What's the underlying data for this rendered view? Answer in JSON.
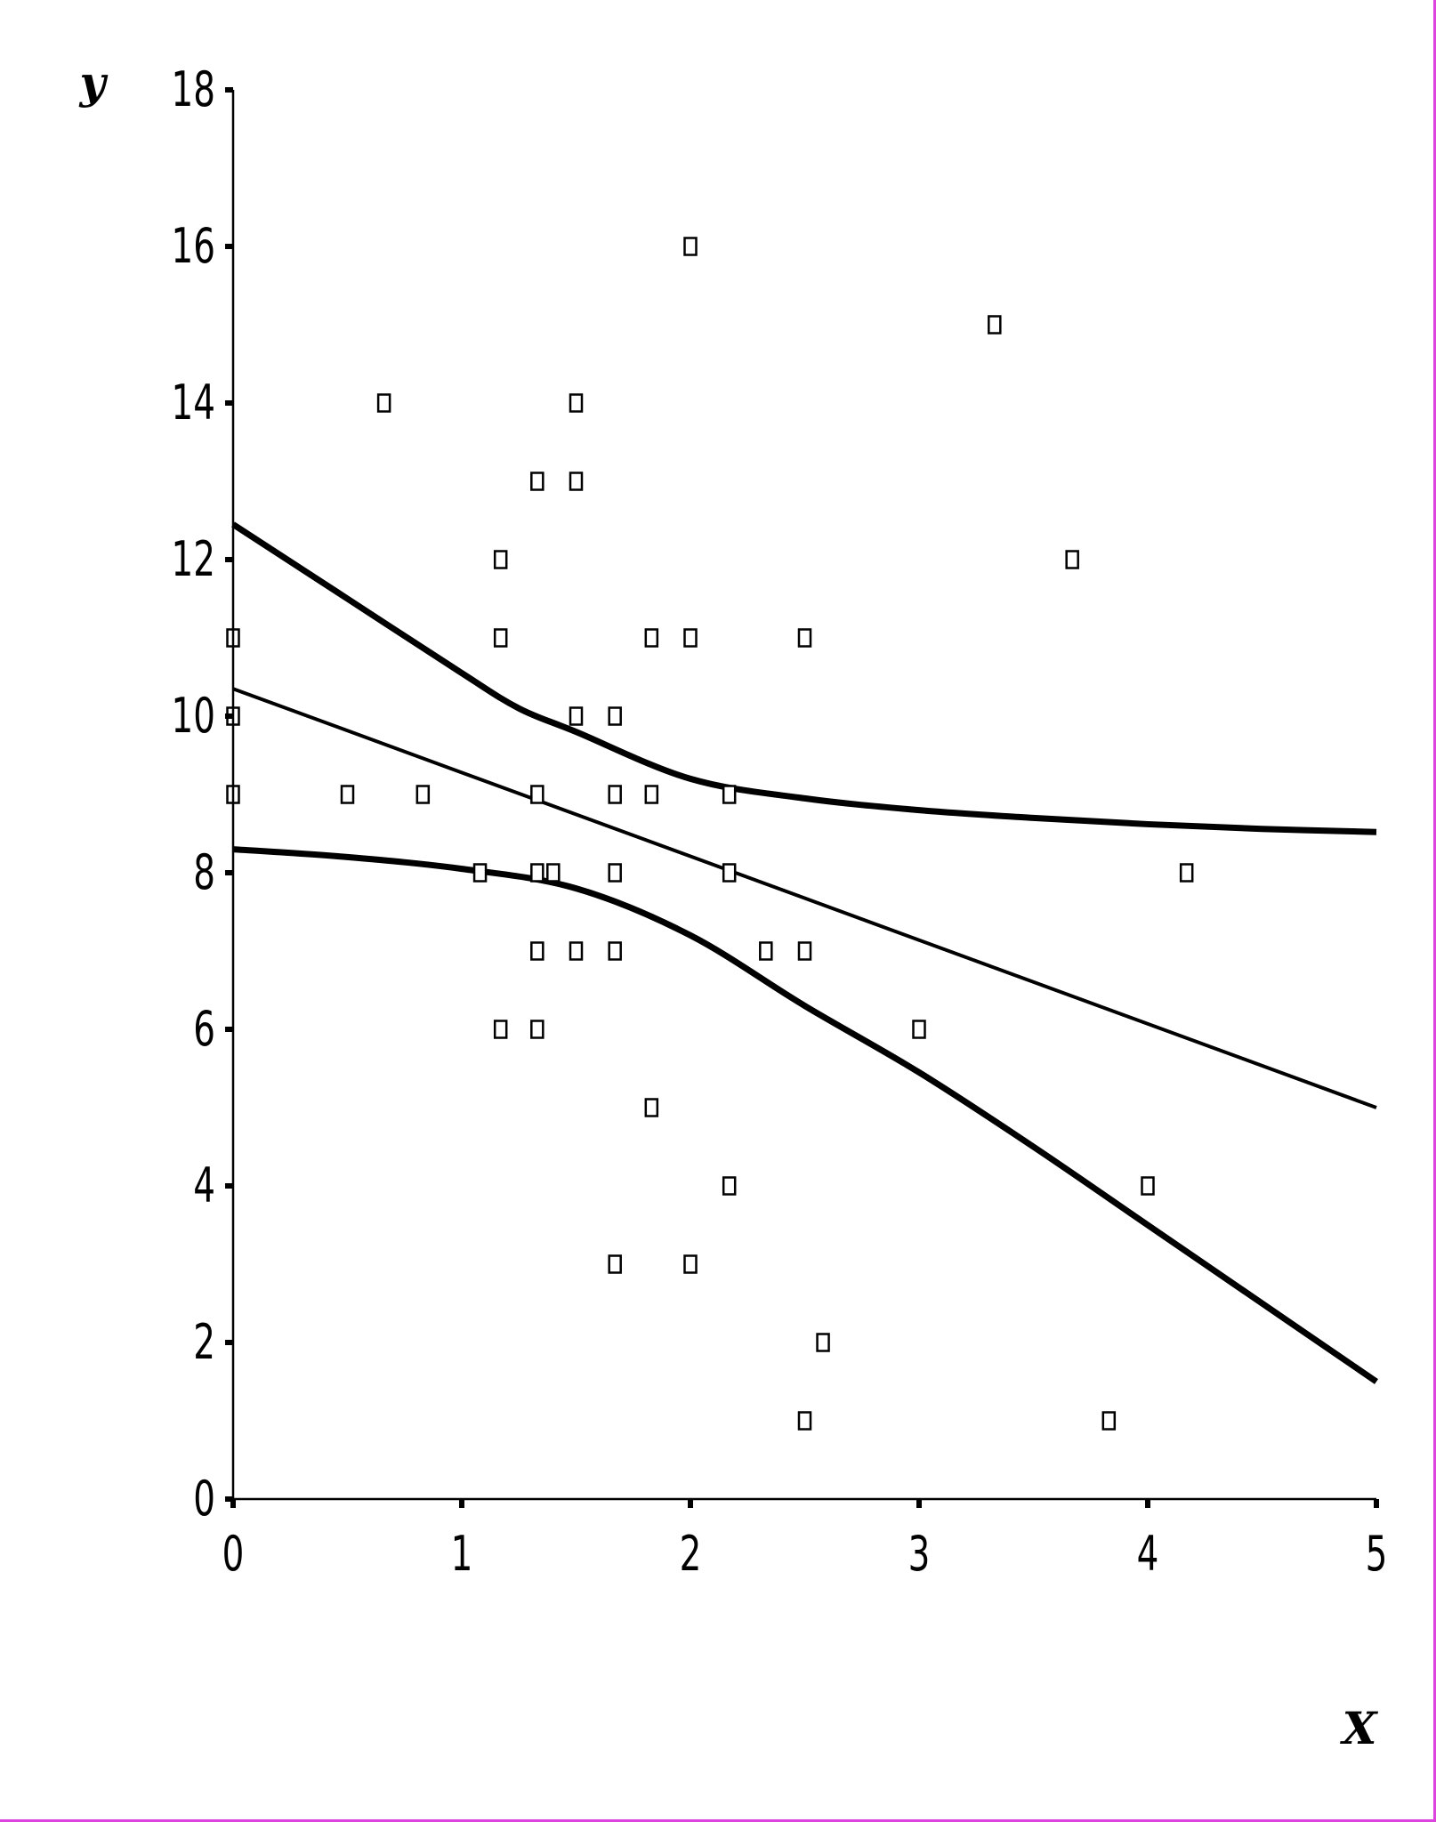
{
  "colors": {
    "frame_border": "#dd44dd",
    "ink": "#000000",
    "background": "#ffffff"
  },
  "chart_data": {
    "type": "scatter",
    "title": "",
    "xlabel": "X",
    "ylabel": "y",
    "xlim": [
      0,
      5
    ],
    "ylim": [
      0,
      18
    ],
    "xticks": [
      0,
      1,
      2,
      3,
      4,
      5
    ],
    "yticks": [
      0,
      2,
      4,
      6,
      8,
      10,
      12,
      14,
      16,
      18
    ],
    "grid": false,
    "legend": "none",
    "series": [
      {
        "kind": "points",
        "marker": "open-square",
        "points": [
          [
            0,
            11
          ],
          [
            0,
            10
          ],
          [
            0,
            9
          ],
          [
            0.5,
            9
          ],
          [
            0.66,
            14
          ],
          [
            0.83,
            9
          ],
          [
            1.08,
            8
          ],
          [
            1.17,
            12
          ],
          [
            1.17,
            11
          ],
          [
            1.17,
            6
          ],
          [
            1.33,
            13
          ],
          [
            1.33,
            9
          ],
          [
            1.33,
            8
          ],
          [
            1.33,
            7
          ],
          [
            1.33,
            6
          ],
          [
            1.4,
            8
          ],
          [
            1.5,
            14
          ],
          [
            1.5,
            13
          ],
          [
            1.5,
            10
          ],
          [
            1.5,
            7
          ],
          [
            1.67,
            10
          ],
          [
            1.67,
            9
          ],
          [
            1.67,
            8
          ],
          [
            1.67,
            7
          ],
          [
            1.67,
            3
          ],
          [
            1.83,
            11
          ],
          [
            1.83,
            9
          ],
          [
            1.83,
            5
          ],
          [
            2,
            16
          ],
          [
            2,
            11
          ],
          [
            2,
            3
          ],
          [
            2.17,
            9
          ],
          [
            2.17,
            8
          ],
          [
            2.17,
            4
          ],
          [
            2.33,
            7
          ],
          [
            2.5,
            11
          ],
          [
            2.5,
            7
          ],
          [
            2.5,
            1
          ],
          [
            2.58,
            2
          ],
          [
            3,
            6
          ],
          [
            3.33,
            15
          ],
          [
            3.67,
            12
          ],
          [
            3.83,
            1
          ],
          [
            4,
            4
          ],
          [
            4.17,
            8
          ]
        ]
      },
      {
        "kind": "line",
        "role": "fit",
        "stroke_width": 4,
        "points": [
          [
            0,
            10.35
          ],
          [
            5,
            5.0
          ]
        ]
      },
      {
        "kind": "curve",
        "role": "upper-band",
        "stroke_width": 7,
        "points": [
          [
            0,
            12.45
          ],
          [
            0.5,
            11.5
          ],
          [
            1,
            10.55
          ],
          [
            1.25,
            10.1
          ],
          [
            1.5,
            9.8
          ],
          [
            2,
            9.2
          ],
          [
            2.5,
            8.95
          ],
          [
            3,
            8.8
          ],
          [
            3.5,
            8.7
          ],
          [
            4,
            8.62
          ],
          [
            4.5,
            8.56
          ],
          [
            5,
            8.52
          ]
        ]
      },
      {
        "kind": "curve",
        "role": "lower-band",
        "stroke_width": 7,
        "points": [
          [
            0,
            8.3
          ],
          [
            0.5,
            8.2
          ],
          [
            1,
            8.05
          ],
          [
            1.5,
            7.8
          ],
          [
            2,
            7.2
          ],
          [
            2.5,
            6.3
          ],
          [
            3,
            5.45
          ],
          [
            3.5,
            4.5
          ],
          [
            4,
            3.5
          ],
          [
            4.5,
            2.5
          ],
          [
            5,
            1.5
          ]
        ]
      }
    ]
  }
}
